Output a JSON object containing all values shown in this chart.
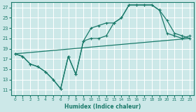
{
  "xlabel": "Humidex (Indice chaleur)",
  "bg_color": "#cce8e8",
  "grid_color": "#ffffff",
  "line_color": "#1a7a6a",
  "xlim": [
    -0.5,
    23.5
  ],
  "ylim": [
    10,
    28
  ],
  "xticks": [
    0,
    1,
    2,
    3,
    4,
    5,
    6,
    7,
    8,
    9,
    10,
    11,
    12,
    13,
    14,
    15,
    16,
    17,
    18,
    19,
    20,
    21,
    22,
    23
  ],
  "yticks": [
    11,
    13,
    15,
    17,
    19,
    21,
    23,
    25,
    27
  ],
  "line1_x": [
    0,
    1,
    2,
    3,
    4,
    5,
    6,
    7,
    8,
    9,
    10,
    11,
    12,
    13,
    14,
    15,
    16,
    17,
    18,
    19,
    20,
    21,
    22,
    23
  ],
  "line1_y": [
    18.0,
    17.5,
    16.0,
    15.5,
    14.5,
    13.0,
    11.2,
    17.5,
    14.0,
    20.5,
    21.0,
    21.0,
    21.5,
    24.0,
    25.0,
    27.5,
    27.5,
    27.5,
    27.5,
    26.5,
    24.5,
    22.0,
    21.5,
    21.0
  ],
  "line2_x": [
    0,
    1,
    2,
    3,
    4,
    5,
    6,
    7,
    8,
    9,
    10,
    11,
    12,
    13,
    14,
    15,
    16,
    17,
    18,
    19,
    20,
    21,
    22,
    23
  ],
  "line2_y": [
    18.0,
    17.5,
    16.0,
    15.5,
    14.5,
    13.0,
    11.2,
    17.5,
    14.0,
    20.5,
    23.0,
    23.5,
    24.0,
    24.0,
    25.0,
    27.5,
    27.5,
    27.5,
    27.5,
    26.5,
    22.0,
    21.5,
    21.0,
    21.5
  ],
  "line3_x": [
    0,
    23
  ],
  "line3_y": [
    18.0,
    21.0
  ]
}
